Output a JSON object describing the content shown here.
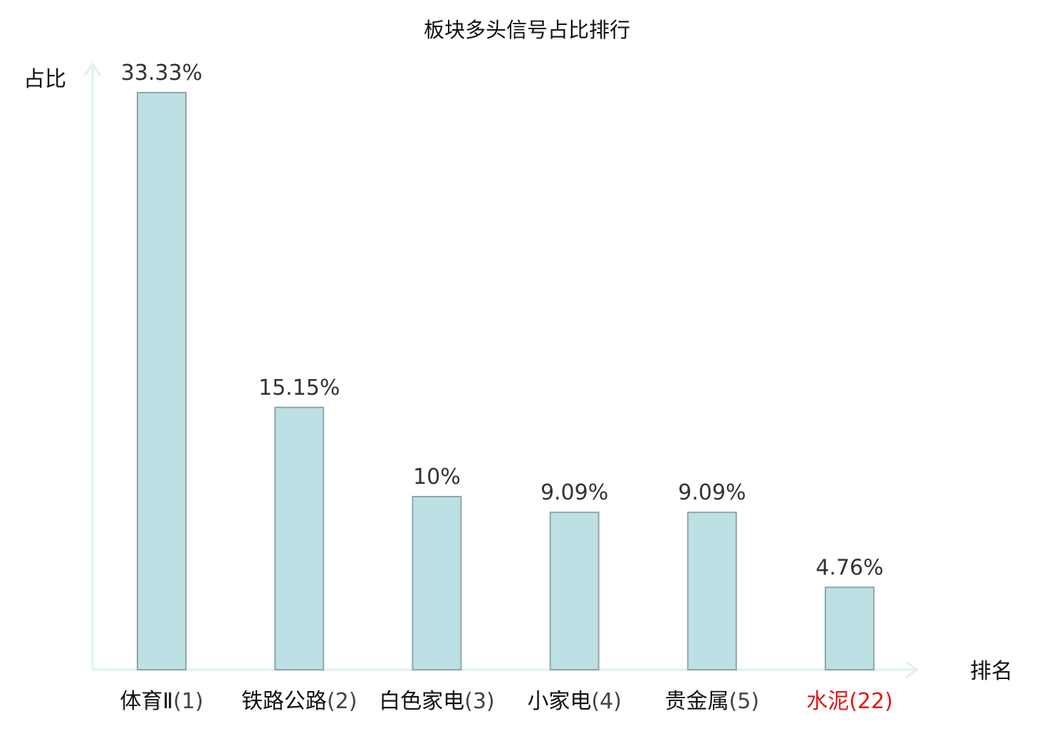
{
  "chart_data": {
    "type": "bar",
    "title": "板块多头信号占比排行",
    "xlabel": "排名",
    "ylabel": "占比",
    "ylim": [
      0,
      35
    ],
    "grid": false,
    "legend": "none",
    "categories": [
      {
        "name": "体育Ⅱ",
        "rank": "(1)",
        "highlight": false
      },
      {
        "name": "铁路公路",
        "rank": "(2)",
        "highlight": false
      },
      {
        "name": "白色家电",
        "rank": "(3)",
        "highlight": false
      },
      {
        "name": "小家电",
        "rank": "(4)",
        "highlight": false
      },
      {
        "name": "贵金属",
        "rank": "(5)",
        "highlight": false
      },
      {
        "name": "水泥",
        "rank": "(22)",
        "highlight": true
      }
    ],
    "values": [
      33.33,
      15.15,
      10,
      9.09,
      9.09,
      4.76
    ],
    "value_labels": [
      "33.33%",
      "15.15%",
      "10%",
      "9.09%",
      "9.09%",
      "4.76%"
    ],
    "colors": {
      "bar_fill": "#bce0e3",
      "bar_stroke": "#8fa7aa",
      "axis": "#dff2ef",
      "label_normal": "#111111",
      "label_rank": "#444444",
      "label_highlight": "#e01818"
    }
  }
}
